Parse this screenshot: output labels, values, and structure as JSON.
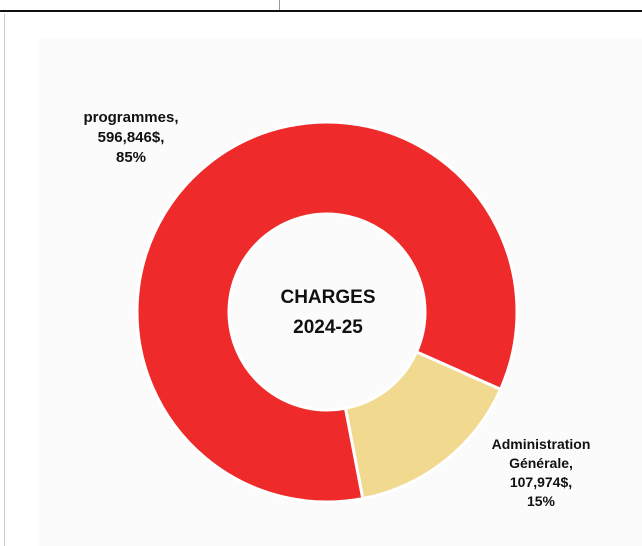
{
  "chart_data": {
    "type": "pie",
    "center_title": [
      "CHARGES",
      "2024-25"
    ],
    "slices": [
      {
        "category": "programmes",
        "value": 596846,
        "value_label": "596,846$",
        "percent": 85,
        "percent_label": "85%",
        "color": "#ee2a2a"
      },
      {
        "category": "Administration Générale",
        "value": 107974,
        "value_label": "107,974$",
        "percent": 15,
        "percent_label": "15%",
        "color": "#f2d990"
      }
    ],
    "labels": [
      {
        "lines": [
          "programmes,",
          "596,846$,",
          "85%"
        ]
      },
      {
        "lines": [
          "Administration",
          "Générale,",
          "107,974$,",
          "15%"
        ]
      }
    ],
    "legend": "none"
  }
}
